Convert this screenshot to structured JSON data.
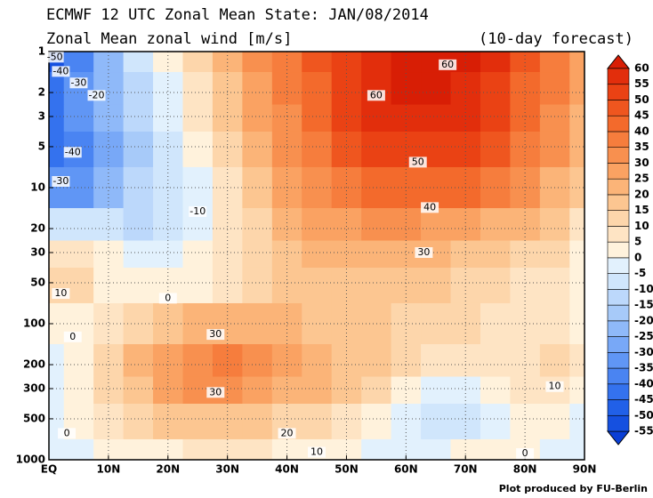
{
  "chart_data": {
    "type": "contourf",
    "title": "ECMWF 12 UTC Zonal Mean State: JAN/08/2014",
    "subtitle": "Zonal Mean zonal wind [m/s]",
    "note": "(10-day forecast)",
    "credit": "Plot produced by FU-Berlin",
    "x": [
      0,
      5,
      10,
      15,
      20,
      25,
      30,
      35,
      40,
      45,
      50,
      55,
      60,
      65,
      70,
      75,
      80,
      85,
      90
    ],
    "y": [
      1,
      2,
      3,
      5,
      10,
      20,
      30,
      50,
      100,
      200,
      300,
      500,
      1000
    ],
    "z": [
      [
        -55,
        -40,
        -25,
        -10,
        0,
        10,
        20,
        30,
        38,
        45,
        52,
        58,
        62,
        62,
        60,
        55,
        45,
        35,
        25
      ],
      [
        -45,
        -35,
        -22,
        -12,
        -3,
        8,
        18,
        28,
        36,
        44,
        52,
        58,
        61,
        60,
        58,
        52,
        44,
        35,
        25
      ],
      [
        -42,
        -35,
        -25,
        -15,
        -5,
        5,
        15,
        25,
        33,
        42,
        50,
        55,
        57,
        57,
        55,
        50,
        42,
        34,
        24
      ],
      [
        -42,
        -40,
        -30,
        -18,
        -8,
        2,
        12,
        22,
        30,
        38,
        45,
        50,
        52,
        52,
        50,
        45,
        38,
        30,
        22
      ],
      [
        -35,
        -33,
        -25,
        -15,
        -10,
        -2,
        8,
        17,
        25,
        32,
        38,
        42,
        43,
        42,
        40,
        36,
        30,
        24,
        18
      ],
      [
        -8,
        -8,
        -10,
        -12,
        -8,
        -2,
        5,
        13,
        20,
        25,
        28,
        30,
        30,
        29,
        27,
        24,
        20,
        15,
        5
      ],
      [
        8,
        6,
        0,
        -3,
        -2,
        0,
        5,
        12,
        17,
        20,
        22,
        22,
        22,
        21,
        19,
        17,
        14,
        10,
        4
      ],
      [
        12,
        10,
        3,
        2,
        2,
        4,
        8,
        12,
        16,
        18,
        19,
        18,
        17,
        16,
        14,
        12,
        9,
        7,
        3
      ],
      [
        0,
        2,
        5,
        10,
        15,
        20,
        22,
        22,
        20,
        18,
        17,
        16,
        14,
        12,
        10,
        8,
        7,
        6,
        3
      ],
      [
        -3,
        3,
        10,
        20,
        28,
        34,
        36,
        33,
        27,
        22,
        18,
        15,
        12,
        8,
        6,
        6,
        8,
        10,
        5
      ],
      [
        -2,
        3,
        10,
        18,
        25,
        31,
        32,
        29,
        24,
        20,
        15,
        10,
        3,
        -3,
        -3,
        2,
        8,
        9,
        3
      ],
      [
        -1,
        2,
        6,
        10,
        15,
        18,
        19,
        17,
        14,
        11,
        7,
        2,
        -5,
        -8,
        -6,
        -2,
        3,
        4,
        -2
      ],
      [
        -4,
        -3,
        0,
        2,
        4,
        5,
        6,
        5,
        4,
        2,
        0,
        -2,
        -2,
        -1,
        0,
        0,
        0,
        -3,
        -4
      ]
    ],
    "xlim": [
      0,
      90
    ],
    "xticks": [
      {
        "value": 0,
        "label": "EQ"
      },
      {
        "value": 10,
        "label": "10N"
      },
      {
        "value": 20,
        "label": "20N"
      },
      {
        "value": 30,
        "label": "30N"
      },
      {
        "value": 40,
        "label": "40N"
      },
      {
        "value": 50,
        "label": "50N"
      },
      {
        "value": 60,
        "label": "60N"
      },
      {
        "value": 70,
        "label": "70N"
      },
      {
        "value": 80,
        "label": "80N"
      },
      {
        "value": 90,
        "label": "90N"
      }
    ],
    "ylim": [
      1000,
      1
    ],
    "yticks": [
      1,
      2,
      3,
      5,
      10,
      20,
      30,
      50,
      100,
      200,
      300,
      500,
      1000
    ],
    "ylog": true,
    "grid": true,
    "colorbar": {
      "levels": [
        -55,
        -50,
        -45,
        -40,
        -35,
        -30,
        -25,
        -20,
        -15,
        -10,
        -5,
        0,
        5,
        10,
        15,
        20,
        25,
        30,
        35,
        40,
        45,
        50,
        55,
        60
      ],
      "colors": [
        "#0a3fd6",
        "#1550e0",
        "#2160e8",
        "#3472ee",
        "#4a84f2",
        "#6096f5",
        "#78a8f7",
        "#8fb9f9",
        "#a7caf9",
        "#bcd8fb",
        "#d0e6fc",
        "#e2f1fd",
        "#fff2dc",
        "#fee4c4",
        "#fdd6ab",
        "#fcc691",
        "#fbb478",
        "#faa262",
        "#f8904f",
        "#f67d3d",
        "#f36a2c",
        "#ef561f",
        "#ea4214",
        "#e22e0c",
        "#d81e05"
      ]
    },
    "contour_labels": [
      {
        "x": 67,
        "y": 1.25,
        "value": 60
      },
      {
        "x": 55,
        "y": 2.1,
        "value": 60
      },
      {
        "x": 62,
        "y": 6.5,
        "value": 50
      },
      {
        "x": 64,
        "y": 14,
        "value": 40
      },
      {
        "x": 63,
        "y": 30,
        "value": 30
      },
      {
        "x": 1,
        "y": 1.1,
        "value": -50
      },
      {
        "x": 2,
        "y": 1.4,
        "value": -40
      },
      {
        "x": 5,
        "y": 1.7,
        "value": -30
      },
      {
        "x": 8,
        "y": 2.1,
        "value": -20
      },
      {
        "x": 4,
        "y": 5.5,
        "value": -40
      },
      {
        "x": 2,
        "y": 9,
        "value": -30
      },
      {
        "x": 25,
        "y": 15,
        "value": -10
      },
      {
        "x": 20,
        "y": 65,
        "value": 0
      },
      {
        "x": 2,
        "y": 60,
        "value": 10
      },
      {
        "x": 4,
        "y": 125,
        "value": 0
      },
      {
        "x": 28,
        "y": 120,
        "value": 30
      },
      {
        "x": 28,
        "y": 320,
        "value": 30
      },
      {
        "x": 40,
        "y": 640,
        "value": 20
      },
      {
        "x": 45,
        "y": 880,
        "value": 10
      },
      {
        "x": 80,
        "y": 900,
        "value": 0
      },
      {
        "x": 85,
        "y": 290,
        "value": 10
      },
      {
        "x": 3,
        "y": 640,
        "value": 0
      }
    ]
  }
}
